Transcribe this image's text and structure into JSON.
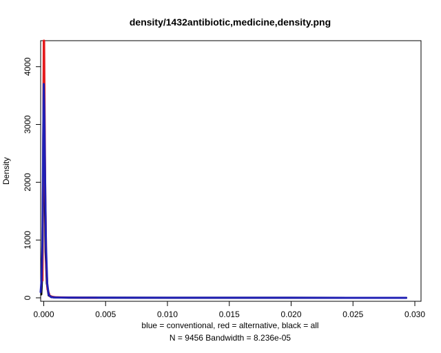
{
  "chart_data": {
    "type": "line",
    "title": "density/1432antibiotic,medicine,density.png",
    "xlabel_line1": "blue = conventional, red = alternative, black = all",
    "xlabel_line2": "N = 9456   Bandwidth = 8.236e-05",
    "ylabel": "Density",
    "xlim": [
      -0.00025,
      0.0305
    ],
    "ylim": [
      -60,
      4450
    ],
    "x_ticks": [
      0.0,
      0.005,
      0.01,
      0.015,
      0.02,
      0.025,
      0.03
    ],
    "x_tick_labels": [
      "0.000",
      "0.005",
      "0.010",
      "0.015",
      "0.020",
      "0.025",
      "0.030"
    ],
    "y_ticks": [
      0,
      1000,
      2000,
      3000,
      4000
    ],
    "y_tick_labels": [
      "0",
      "1000",
      "2000",
      "3000",
      "4000"
    ],
    "grid": false,
    "series": [
      {
        "name": "all",
        "color": "#000000",
        "x": [
          -0.0002,
          -0.00012,
          -5e-05,
          0.0,
          3e-05,
          8e-05,
          0.00015,
          0.00025,
          0.0004,
          0.0008,
          0.002,
          0.01,
          0.02,
          0.0293
        ],
        "y": [
          60,
          400,
          2000,
          3900,
          3400,
          2000,
          800,
          250,
          40,
          8,
          3,
          1,
          0.5,
          0.2
        ]
      },
      {
        "name": "alternative",
        "color": "#e41a1c",
        "x": [
          -0.0001,
          -4e-05,
          0.0,
          3e-05,
          7e-05,
          0.00012,
          0.0002,
          0.0003,
          0.0005,
          0.001,
          0.002,
          0.003,
          0.0043
        ],
        "y": [
          300,
          2500,
          4450,
          4450,
          3200,
          1800,
          600,
          150,
          25,
          8,
          5,
          3,
          0.5
        ]
      },
      {
        "name": "conventional",
        "color": "#1f1fb4",
        "x": [
          -0.00025,
          -0.00018,
          -0.0001,
          -4e-05,
          0.0,
          4e-05,
          0.0001,
          0.00018,
          0.00028,
          0.0004,
          0.0006,
          0.001,
          0.003,
          0.01,
          0.02,
          0.0293
        ],
        "y": [
          100,
          300,
          1000,
          2800,
          3700,
          3300,
          2200,
          900,
          250,
          50,
          12,
          5,
          2,
          1,
          0.5,
          0.2
        ]
      }
    ]
  }
}
